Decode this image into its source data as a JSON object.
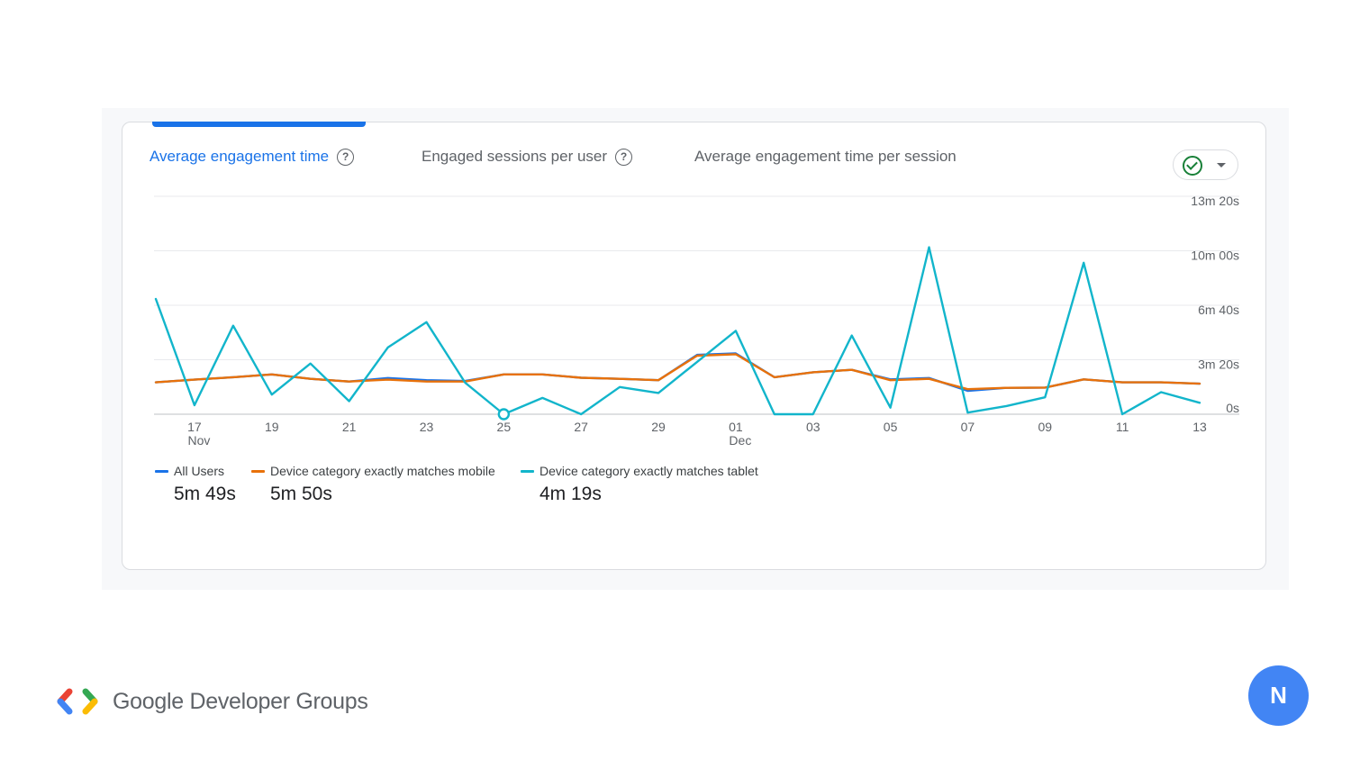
{
  "tabs": [
    {
      "label": "Average engagement time",
      "active": true,
      "help": true
    },
    {
      "label": "Engaged sessions per user",
      "active": false,
      "help": true
    },
    {
      "label": "Average engagement time per session",
      "active": false,
      "help": false
    }
  ],
  "compare_button": {
    "icon": "check-circle-icon",
    "dropdown_icon": "caret-down-icon"
  },
  "chart_data": {
    "type": "line",
    "y_tick_labels": [
      "0s",
      "3m 20s",
      "6m 40s",
      "10m 00s",
      "13m 20s"
    ],
    "y_tick_values": [
      0,
      200,
      400,
      600,
      800
    ],
    "ylim": [
      0,
      800
    ],
    "y_unit": "seconds",
    "x": [
      "Nov 16",
      "Nov 17",
      "Nov 18",
      "Nov 19",
      "Nov 20",
      "Nov 21",
      "Nov 22",
      "Nov 23",
      "Nov 24",
      "Nov 25",
      "Nov 26",
      "Nov 27",
      "Nov 28",
      "Nov 29",
      "Nov 30",
      "Dec 01",
      "Dec 02",
      "Dec 03",
      "Dec 04",
      "Dec 05",
      "Dec 06",
      "Dec 07",
      "Dec 08",
      "Dec 09",
      "Dec 10",
      "Dec 11",
      "Dec 12",
      "Dec 13"
    ],
    "x_tick_labels": [
      {
        "index": 1,
        "label": "17",
        "sub": "Nov"
      },
      {
        "index": 3,
        "label": "19",
        "sub": ""
      },
      {
        "index": 5,
        "label": "21",
        "sub": ""
      },
      {
        "index": 7,
        "label": "23",
        "sub": ""
      },
      {
        "index": 9,
        "label": "25",
        "sub": ""
      },
      {
        "index": 11,
        "label": "27",
        "sub": ""
      },
      {
        "index": 13,
        "label": "29",
        "sub": ""
      },
      {
        "index": 15,
        "label": "01",
        "sub": "Dec"
      },
      {
        "index": 17,
        "label": "03",
        "sub": ""
      },
      {
        "index": 19,
        "label": "05",
        "sub": ""
      },
      {
        "index": 21,
        "label": "07",
        "sub": ""
      },
      {
        "index": 23,
        "label": "09",
        "sub": ""
      },
      {
        "index": 25,
        "label": "11",
        "sub": ""
      },
      {
        "index": 27,
        "label": "13",
        "sub": ""
      }
    ],
    "series": [
      {
        "name": "All Users",
        "color": "#1a73e8",
        "values": [
          117,
          127,
          136,
          146,
          130,
          120,
          133,
          125,
          122,
          146,
          146,
          134,
          130,
          125,
          218,
          223,
          136,
          154,
          163,
          128,
          133,
          86,
          97,
          98,
          128,
          117,
          117,
          112
        ]
      },
      {
        "name": "Device category exactly matches mobile",
        "color": "#e8710a",
        "values": [
          117,
          127,
          136,
          146,
          130,
          120,
          127,
          120,
          120,
          146,
          146,
          134,
          130,
          125,
          215,
          220,
          136,
          154,
          163,
          125,
          130,
          92,
          97,
          98,
          128,
          117,
          117,
          112
        ]
      },
      {
        "name": "Device category exactly matches tablet",
        "color": "#12b5cb",
        "values": [
          423,
          33,
          325,
          72,
          186,
          48,
          245,
          338,
          116,
          0,
          60,
          0,
          100,
          78,
          192,
          306,
          0,
          0,
          289,
          24,
          613,
          6,
          30,
          62,
          556,
          0,
          81,
          42
        ]
      }
    ],
    "highlight_point": {
      "series": 2,
      "index": 9
    },
    "legend_position": "bottom-left",
    "grid": true
  },
  "legend": [
    {
      "name": "All Users",
      "value": "5m 49s",
      "color": "#1a73e8"
    },
    {
      "name": "Device category exactly matches mobile",
      "value": "5m 50s",
      "color": "#e8710a"
    },
    {
      "name": "Device category exactly matches tablet",
      "value": "4m 19s",
      "color": "#12b5cb"
    }
  ],
  "footer": {
    "brand_text": "Google Developer Groups",
    "brand_icon": "gdg-chevrons-icon",
    "avatar_letter": "N"
  }
}
